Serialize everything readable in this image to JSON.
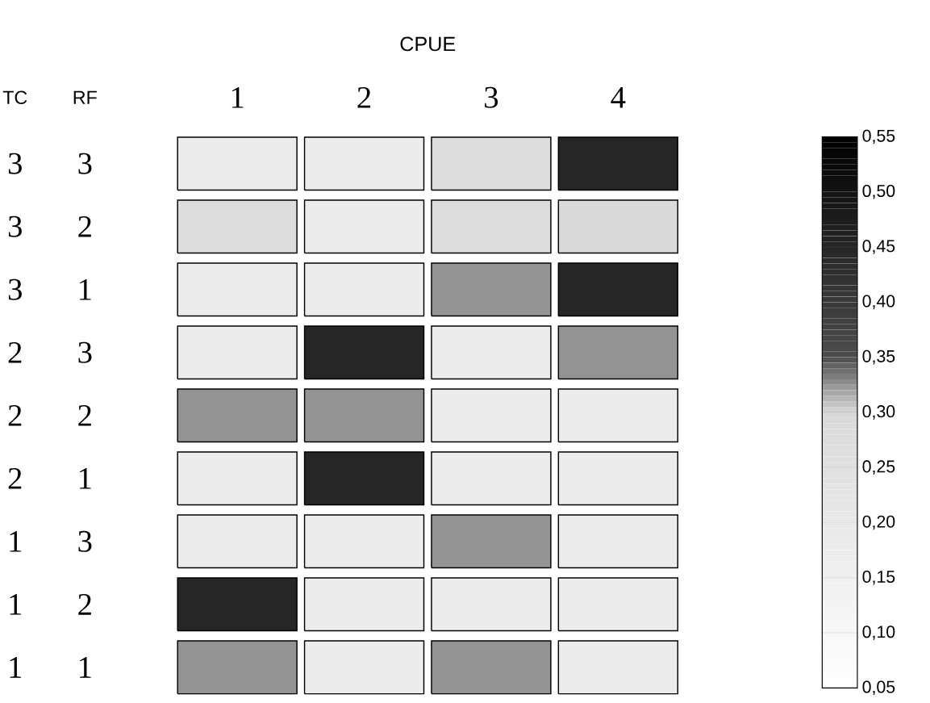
{
  "chart_data": {
    "type": "heatmap",
    "xlabel": "CPUE",
    "ylabel": "TC",
    "y2label": "RF",
    "categories": [
      "1",
      "2",
      "3",
      "4"
    ],
    "y_categories": [
      "3",
      "3",
      "3",
      "2",
      "2",
      "2",
      "1",
      "1",
      "1"
    ],
    "y2_categories": [
      "3",
      "2",
      "1",
      "3",
      "2",
      "1",
      "3",
      "2",
      "1"
    ],
    "cells": [
      [
        0.175,
        0.175,
        0.275,
        0.45
      ],
      [
        0.275,
        0.175,
        0.275,
        0.29
      ],
      [
        0.175,
        0.175,
        0.325,
        0.45
      ],
      [
        0.175,
        0.45,
        0.175,
        0.325
      ],
      [
        0.325,
        0.325,
        0.175,
        0.175
      ],
      [
        0.175,
        0.45,
        0.175,
        0.175
      ],
      [
        0.175,
        0.175,
        0.325,
        0.175
      ],
      [
        0.45,
        0.175,
        0.175,
        0.175
      ],
      [
        0.325,
        0.175,
        0.325,
        0.175
      ]
    ],
    "clim": [
      0.05,
      0.55
    ],
    "cticks": [
      {
        "value": 0.05,
        "label": "0,05"
      },
      {
        "value": 0.1,
        "label": "0,10"
      },
      {
        "value": 0.15,
        "label": "0,15"
      },
      {
        "value": 0.2,
        "label": "0,20"
      },
      {
        "value": 0.25,
        "label": "0,25"
      },
      {
        "value": 0.3,
        "label": "0,30"
      },
      {
        "value": 0.35,
        "label": "0,35"
      },
      {
        "value": 0.4,
        "label": "0,40"
      },
      {
        "value": 0.45,
        "label": "0,45"
      },
      {
        "value": 0.5,
        "label": "0,50"
      },
      {
        "value": 0.55,
        "label": "0,55"
      }
    ]
  }
}
